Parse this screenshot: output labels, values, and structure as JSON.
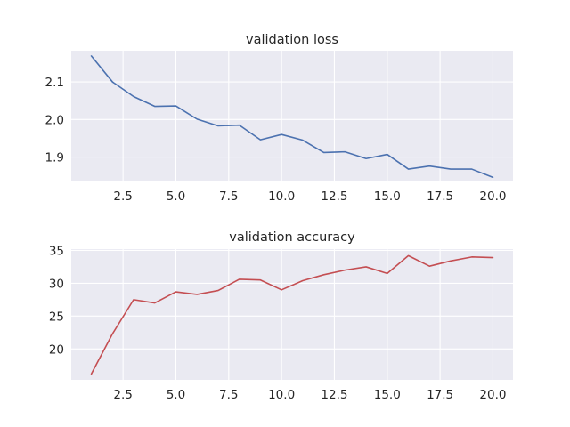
{
  "chart_data": [
    {
      "type": "line",
      "title": "validation loss",
      "xlabel": "",
      "ylabel": "",
      "color": "#4c72b0",
      "grid": true,
      "xlim": [
        0.05,
        20.95
      ],
      "ylim": [
        1.835,
        2.183
      ],
      "xticks": [
        2.5,
        5.0,
        7.5,
        10.0,
        12.5,
        15.0,
        17.5,
        20.0
      ],
      "xtick_labels": [
        "2.5",
        "5.0",
        "7.5",
        "10.0",
        "12.5",
        "15.0",
        "17.5",
        "20.0"
      ],
      "yticks": [
        1.9,
        2.0,
        2.1
      ],
      "ytick_labels": [
        "1.9",
        "2.0",
        "2.1"
      ],
      "x": [
        1,
        2,
        3,
        4,
        5,
        6,
        7,
        8,
        9,
        10,
        11,
        12,
        13,
        14,
        15,
        16,
        17,
        18,
        19,
        20
      ],
      "values": [
        2.169,
        2.1,
        2.061,
        2.035,
        2.036,
        2.001,
        1.983,
        1.985,
        1.946,
        1.96,
        1.945,
        1.912,
        1.914,
        1.896,
        1.907,
        1.868,
        1.876,
        1.868,
        1.868,
        1.846
      ]
    },
    {
      "type": "line",
      "title": "validation accuracy",
      "xlabel": "",
      "ylabel": "",
      "color": "#c44e52",
      "grid": true,
      "xlim": [
        0.05,
        20.95
      ],
      "ylim": [
        15.3,
        35.2
      ],
      "xticks": [
        2.5,
        5.0,
        7.5,
        10.0,
        12.5,
        15.0,
        17.5,
        20.0
      ],
      "xtick_labels": [
        "2.5",
        "5.0",
        "7.5",
        "10.0",
        "12.5",
        "15.0",
        "17.5",
        "20.0"
      ],
      "yticks": [
        20,
        25,
        30,
        35
      ],
      "ytick_labels": [
        "20",
        "25",
        "30",
        "35"
      ],
      "x": [
        1,
        2,
        3,
        4,
        5,
        6,
        7,
        8,
        9,
        10,
        11,
        12,
        13,
        14,
        15,
        16,
        17,
        18,
        19,
        20
      ],
      "values": [
        16.2,
        22.3,
        27.5,
        27.0,
        28.7,
        28.3,
        28.9,
        30.6,
        30.5,
        29.0,
        30.4,
        31.3,
        32.0,
        32.5,
        31.5,
        34.2,
        32.6,
        33.4,
        34.0,
        33.9
      ]
    }
  ]
}
